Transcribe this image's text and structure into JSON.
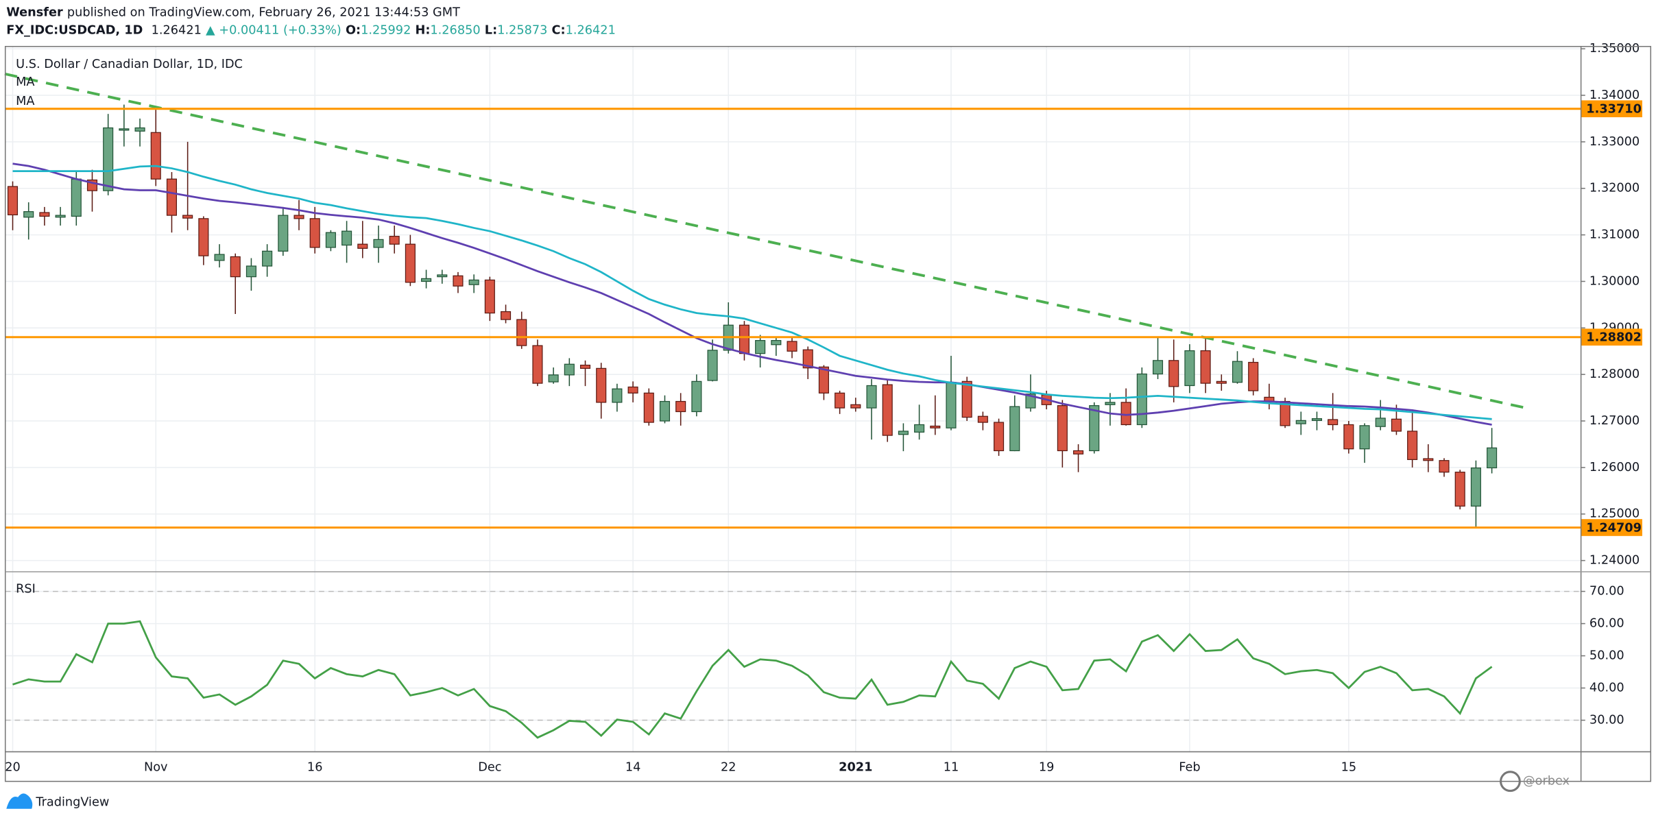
{
  "header": {
    "author": "Wensfer",
    "published": "published on TradingView.com, February 26, 2021 13:44:53 GMT",
    "symbol": "FX_IDC:USDCAD, 1D",
    "last": "1.26421",
    "change": "▲ +0.00411 (+0.33%)",
    "ohlc": [
      {
        "key": "O:",
        "value": "1.25992"
      },
      {
        "key": "H:",
        "value": "1.26850"
      },
      {
        "key": "L:",
        "value": "1.25873"
      },
      {
        "key": "C:",
        "value": "1.26421"
      }
    ]
  },
  "footer": "TradingView",
  "watermark": "@orbex",
  "chart_data": [
    {
      "type": "candlestick",
      "title": "U.S. Dollar / Canadian Dollar, 1D, IDC",
      "up_color": "#6ba583",
      "up_border": "#225437",
      "down_color": "#d75442",
      "down_border": "#5b1a13",
      "grid": true,
      "categories": [
        "20",
        null,
        null,
        null,
        null,
        null,
        null,
        null,
        null,
        "Nov",
        null,
        null,
        null,
        null,
        null,
        null,
        null,
        null,
        null,
        "16",
        null,
        null,
        null,
        null,
        null,
        null,
        null,
        null,
        null,
        null,
        "Dec",
        null,
        null,
        null,
        null,
        null,
        null,
        null,
        null,
        "14",
        null,
        null,
        null,
        null,
        null,
        "22",
        null,
        null,
        null,
        null,
        null,
        null,
        null,
        "2021",
        null,
        null,
        null,
        null,
        null,
        "11",
        null,
        null,
        null,
        null,
        null,
        "19",
        null,
        null,
        null,
        null,
        null,
        null,
        null,
        null,
        "Feb",
        null,
        null,
        null,
        null,
        null,
        null,
        null,
        null,
        null,
        "15",
        null,
        null,
        null,
        null,
        null,
        null,
        null,
        null,
        null
      ],
      "open": [
        1.3204,
        1.3138,
        1.3148,
        1.3138,
        1.314,
        1.3218,
        1.3195,
        1.3325,
        1.3323,
        1.332,
        1.322,
        1.3142,
        1.3135,
        1.3045,
        1.3053,
        1.301,
        1.3033,
        1.3065,
        1.3142,
        1.3135,
        1.3073,
        1.3078,
        1.308,
        1.3073,
        1.3097,
        1.308,
        1.3,
        1.301,
        1.3012,
        1.2993,
        1.3003,
        1.2935,
        1.2918,
        1.2862,
        1.2784,
        1.2799,
        1.282,
        1.2813,
        1.274,
        1.2773,
        1.276,
        1.27,
        1.2742,
        1.272,
        1.2787,
        1.2852,
        1.2906,
        1.2845,
        1.2864,
        1.2871,
        1.2853,
        1.2816,
        1.276,
        1.2735,
        1.2728,
        1.2778,
        1.2671,
        1.2676,
        1.2689,
        1.2685,
        1.2785,
        1.271,
        1.2697,
        1.2636,
        1.2728,
        1.2756,
        1.2733,
        1.2636,
        1.2636,
        1.2735,
        1.274,
        1.2692,
        1.2801,
        1.283,
        1.2776,
        1.2851,
        1.2785,
        1.2783,
        1.2826,
        1.2751,
        1.2742,
        1.2694,
        1.2701,
        1.2703,
        1.2692,
        1.264,
        1.2688,
        1.2704,
        1.2678,
        1.2619,
        1.2615,
        1.259,
        1.2517,
        1.25992
      ],
      "high": [
        1.3215,
        1.317,
        1.316,
        1.316,
        1.3235,
        1.324,
        1.336,
        1.338,
        1.335,
        1.3375,
        1.3235,
        1.33,
        1.314,
        1.308,
        1.306,
        1.305,
        1.308,
        1.316,
        1.3175,
        1.316,
        1.311,
        1.313,
        1.313,
        1.312,
        1.312,
        1.31,
        1.3025,
        1.3025,
        1.302,
        1.3015,
        1.301,
        1.295,
        1.2935,
        1.2875,
        1.2815,
        1.2835,
        1.283,
        1.2825,
        1.278,
        1.2785,
        1.277,
        1.2755,
        1.276,
        1.28,
        1.2875,
        1.2955,
        1.2915,
        1.2885,
        1.288,
        1.288,
        1.286,
        1.282,
        1.2765,
        1.275,
        1.279,
        1.279,
        1.2695,
        1.2735,
        1.2755,
        1.284,
        1.2795,
        1.272,
        1.2705,
        1.2755,
        1.28,
        1.2765,
        1.2745,
        1.265,
        1.274,
        1.276,
        1.277,
        1.2815,
        1.288,
        1.2875,
        1.2865,
        1.288,
        1.28,
        1.285,
        1.2835,
        1.278,
        1.275,
        1.272,
        1.272,
        1.276,
        1.27,
        1.2695,
        1.2745,
        1.2735,
        1.2725,
        1.265,
        1.262,
        1.2595,
        1.2615,
        1.2685
      ],
      "low": [
        1.311,
        1.309,
        1.312,
        1.312,
        1.312,
        1.315,
        1.3185,
        1.329,
        1.329,
        1.3205,
        1.3105,
        1.311,
        1.3035,
        1.303,
        1.293,
        1.298,
        1.301,
        1.3055,
        1.311,
        1.306,
        1.3065,
        1.304,
        1.305,
        1.304,
        1.306,
        1.299,
        1.2985,
        1.2995,
        1.2975,
        1.2975,
        1.2915,
        1.291,
        1.2855,
        1.2775,
        1.278,
        1.2775,
        1.2775,
        1.2705,
        1.272,
        1.274,
        1.269,
        1.2695,
        1.269,
        1.271,
        1.2785,
        1.2845,
        1.283,
        1.2815,
        1.284,
        1.2835,
        1.279,
        1.2745,
        1.2715,
        1.272,
        1.266,
        1.2655,
        1.2635,
        1.266,
        1.267,
        1.268,
        1.27,
        1.268,
        1.2625,
        1.2635,
        1.272,
        1.2725,
        1.26,
        1.259,
        1.263,
        1.269,
        1.269,
        1.2685,
        1.279,
        1.274,
        1.276,
        1.276,
        1.2765,
        1.278,
        1.2755,
        1.2725,
        1.2685,
        1.267,
        1.268,
        1.268,
        1.263,
        1.261,
        1.268,
        1.267,
        1.26,
        1.259,
        1.258,
        1.251,
        1.2471,
        1.25873
      ],
      "close": [
        1.3143,
        1.315,
        1.314,
        1.3142,
        1.322,
        1.3195,
        1.333,
        1.3328,
        1.333,
        1.322,
        1.3142,
        1.3136,
        1.3055,
        1.3058,
        1.301,
        1.3033,
        1.3065,
        1.3142,
        1.3135,
        1.3073,
        1.3105,
        1.3108,
        1.3071,
        1.309,
        1.308,
        1.2998,
        1.3006,
        1.3014,
        1.299,
        1.3003,
        1.2932,
        1.2918,
        1.2862,
        1.2781,
        1.2799,
        1.2822,
        1.2813,
        1.274,
        1.2769,
        1.276,
        1.2697,
        1.2742,
        1.272,
        1.2785,
        1.2852,
        1.2906,
        1.2845,
        1.2873,
        1.2873,
        1.285,
        1.2814,
        1.276,
        1.2728,
        1.2728,
        1.2776,
        1.2669,
        1.2678,
        1.2692,
        1.2685,
        1.2783,
        1.2708,
        1.2697,
        1.2636,
        1.2731,
        1.2758,
        1.2735,
        1.2636,
        1.2629,
        1.2733,
        1.274,
        1.2692,
        1.2801,
        1.283,
        1.2774,
        1.2851,
        1.2781,
        1.2781,
        1.2828,
        1.2765,
        1.2742,
        1.269,
        1.2701,
        1.2705,
        1.2692,
        1.264,
        1.269,
        1.2706,
        1.2678,
        1.2617,
        1.2615,
        1.259,
        1.2517,
        1.2599,
        1.26421
      ],
      "series": [
        {
          "name": "MA",
          "color": "#5e3fb0",
          "values": [
            1.3253,
            1.3248,
            1.324,
            1.323,
            1.322,
            1.3212,
            1.3205,
            1.3198,
            1.3196,
            1.3196,
            1.319,
            1.3184,
            1.3178,
            1.3173,
            1.317,
            1.3166,
            1.3162,
            1.3158,
            1.3153,
            1.3147,
            1.3143,
            1.314,
            1.3137,
            1.3133,
            1.3125,
            1.3115,
            1.3104,
            1.3093,
            1.3083,
            1.3072,
            1.306,
            1.3048,
            1.3035,
            1.3022,
            1.301,
            1.2998,
            1.2987,
            1.2975,
            1.296,
            1.2945,
            1.293,
            1.2912,
            1.2895,
            1.2878,
            1.2865,
            1.2855,
            1.2846,
            1.2838,
            1.2831,
            1.2825,
            1.2818,
            1.2811,
            1.2804,
            1.2797,
            1.2793,
            1.2789,
            1.2786,
            1.2784,
            1.2783,
            1.2783,
            1.2779,
            1.2773,
            1.2767,
            1.2761,
            1.2754,
            1.2746,
            1.2737,
            1.273,
            1.2723,
            1.2716,
            1.2713,
            1.2715,
            1.2718,
            1.2722,
            1.2727,
            1.2732,
            1.2737,
            1.274,
            1.2742,
            1.2742,
            1.274,
            1.2738,
            1.2736,
            1.2734,
            1.2732,
            1.2731,
            1.2729,
            1.2726,
            1.2723,
            1.2718,
            1.2712,
            1.2705,
            1.2698,
            1.2692
          ]
        },
        {
          "name": "MA",
          "color": "#1fb5c8",
          "values": [
            1.3237,
            1.3237,
            1.3237,
            1.3237,
            1.3237,
            1.3237,
            1.3237,
            1.3242,
            1.3247,
            1.3248,
            1.3243,
            1.3235,
            1.3225,
            1.3216,
            1.3208,
            1.3198,
            1.319,
            1.3184,
            1.3178,
            1.3169,
            1.3164,
            1.3157,
            1.3151,
            1.3145,
            1.3141,
            1.3138,
            1.3136,
            1.313,
            1.3123,
            1.3115,
            1.3108,
            1.3098,
            1.3088,
            1.3077,
            1.3065,
            1.305,
            1.3037,
            1.302,
            1.3,
            1.298,
            1.2962,
            1.295,
            1.294,
            1.2932,
            1.2928,
            1.2925,
            1.292,
            1.291,
            1.29,
            1.289,
            1.2875,
            1.2858,
            1.284,
            1.283,
            1.282,
            1.281,
            1.2802,
            1.2796,
            1.2788,
            1.2782,
            1.2778,
            1.2774,
            1.277,
            1.2766,
            1.2762,
            1.2757,
            1.2754,
            1.2752,
            1.275,
            1.2749,
            1.275,
            1.2752,
            1.2754,
            1.2752,
            1.275,
            1.2748,
            1.2746,
            1.2744,
            1.2741,
            1.2738,
            1.2736,
            1.2734,
            1.2732,
            1.273,
            1.2728,
            1.2726,
            1.2725,
            1.2722,
            1.2719,
            1.2716,
            1.2713,
            1.271,
            1.2707,
            1.2704
          ]
        }
      ],
      "trendline": {
        "color": "#4caf50",
        "x": [
          -0.5,
          95
        ],
        "y": [
          1.3446,
          1.2729
        ]
      },
      "levels": [
        {
          "value": 1.3371,
          "label": "1.33710"
        },
        1.28802,
        1.24709
      ],
      "level_color": "#ff9800",
      "ylim": [
        1.2377,
        1.3505
      ],
      "yticks": [
        {
          "value": 1.24,
          "label": "1.24000"
        },
        {
          "value": 1.25,
          "label": "1.25000"
        },
        {
          "value": 1.26,
          "label": "1.26000"
        },
        {
          "value": 1.27,
          "label": "1.27000"
        },
        {
          "value": 1.28,
          "label": "1.28000"
        },
        {
          "value": 1.29,
          "label": "1.29000"
        },
        {
          "value": 1.3,
          "label": "1.30000"
        },
        {
          "value": 1.31,
          "label": "1.31000"
        },
        {
          "value": 1.32,
          "label": "1.32000"
        },
        {
          "value": 1.33,
          "label": "1.33000"
        },
        {
          "value": 1.34,
          "label": "1.34000"
        },
        {
          "value": 1.35,
          "label": "1.35000"
        }
      ]
    },
    {
      "type": "line",
      "title": "RSI",
      "grid": true,
      "bands": [
        30,
        70
      ],
      "series": [
        {
          "color": "#43a047",
          "values": [
            41.1,
            42.7,
            42,
            42,
            50.5,
            48,
            60,
            60,
            60.7,
            49.5,
            43.6,
            43,
            37,
            38,
            34.8,
            37.4,
            41,
            48.5,
            47.5,
            43,
            46.2,
            44.3,
            43.6,
            45.6,
            44.3,
            37.7,
            38.7,
            40,
            37.7,
            39.7,
            34.4,
            32.8,
            29.2,
            24.6,
            26.9,
            29.8,
            29.5,
            25.2,
            30.2,
            29.5,
            25.6,
            32.1,
            30.5,
            39,
            46.9,
            51.8,
            46.6,
            48.9,
            48.5,
            46.9,
            43.9,
            38.7,
            37,
            36.7,
            42.6,
            34.8,
            35.7,
            37.7,
            37.4,
            48.2,
            42.3,
            41.3,
            36.7,
            46.2,
            48.2,
            46.6,
            39.3,
            39.7,
            48.5,
            48.9,
            45.2,
            54.4,
            56.4,
            51.5,
            56.7,
            51.5,
            51.8,
            55.1,
            49.2,
            47.5,
            44.3,
            45.2,
            45.6,
            44.6,
            40,
            45,
            46.6,
            44.6,
            39.3,
            39.7,
            37.4,
            32.1,
            43,
            46.6
          ]
        }
      ],
      "ylim": [
        20.2,
        75.6
      ],
      "yticks": [
        {
          "value": 30,
          "label": "30.00"
        },
        {
          "value": 40,
          "label": "40.00"
        },
        {
          "value": 50,
          "label": "50.00"
        },
        {
          "value": 60,
          "label": "60.00"
        },
        {
          "value": 70,
          "label": "70.00"
        }
      ]
    }
  ]
}
